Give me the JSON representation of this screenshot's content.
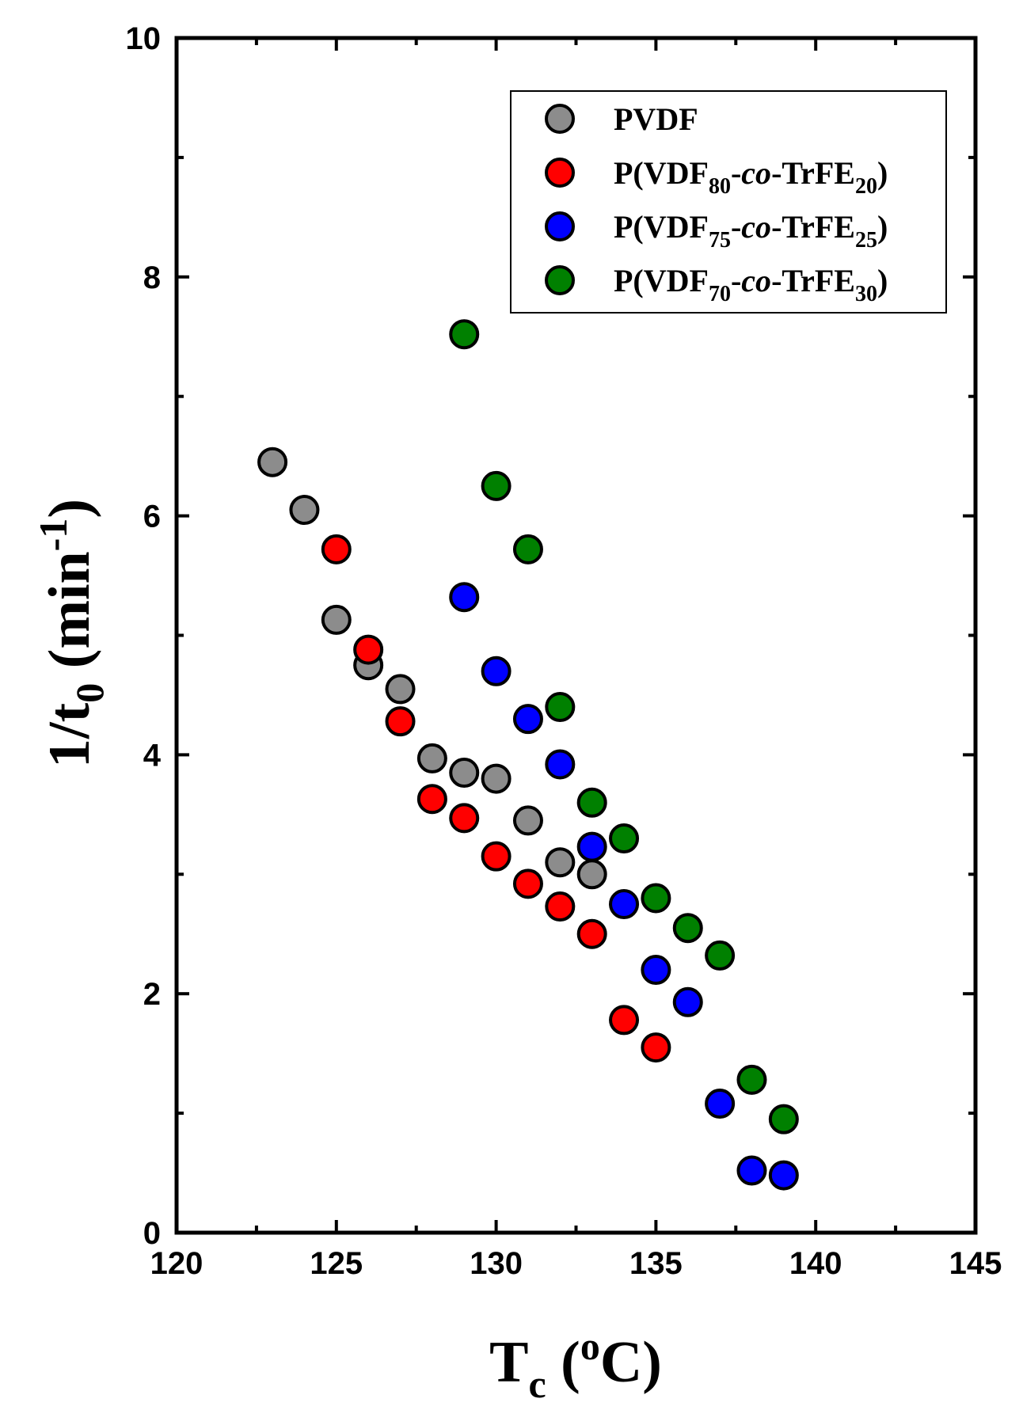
{
  "chart_data": {
    "type": "scatter",
    "xlabel": "Tc (oC)",
    "xlabel_parts": {
      "main": "T",
      "sub": "c",
      "open": " (",
      "sup": "o",
      "unit": "C)"
    },
    "ylabel": "1/t0 (min-1)",
    "ylabel_parts": {
      "main": "1/t",
      "sub": "0",
      "unit": " (min",
      "sup": "-1",
      "close": ")"
    },
    "xlim": [
      120,
      145
    ],
    "ylim": [
      0,
      10
    ],
    "xticks": [
      "120",
      "125",
      "130",
      "135",
      "140",
      "145"
    ],
    "yticks": [
      "0",
      "2",
      "4",
      "6",
      "8",
      "10"
    ],
    "legend_position": "top-right",
    "series": [
      {
        "name": "PVDF",
        "label_parts": [
          "PVDF"
        ],
        "color": "#8c8c8c",
        "x": [
          123,
          124,
          125,
          126,
          127,
          128,
          129,
          130,
          131,
          132,
          133
        ],
        "y": [
          6.45,
          6.05,
          5.13,
          4.75,
          4.55,
          3.97,
          3.85,
          3.8,
          3.45,
          3.1,
          3.0
        ]
      },
      {
        "name": "P(VDF80-co-TrFE20)",
        "label_parts": [
          "P(VDF",
          "80",
          "-",
          "co",
          "-TrFE",
          "20",
          ")"
        ],
        "color": "#ff0000",
        "x": [
          125,
          126,
          127,
          128,
          129,
          130,
          131,
          132,
          133,
          134,
          135
        ],
        "y": [
          5.72,
          4.88,
          4.28,
          3.63,
          3.47,
          3.15,
          2.92,
          2.73,
          2.5,
          1.78,
          1.55
        ]
      },
      {
        "name": "P(VDF75-co-TrFE25)",
        "label_parts": [
          "P(VDF",
          "75",
          "-",
          "co",
          "-TrFE",
          "25",
          ")"
        ],
        "color": "#0000ff",
        "x": [
          129,
          130,
          131,
          132,
          133,
          134,
          135,
          136,
          137,
          138,
          139
        ],
        "y": [
          5.32,
          4.7,
          4.3,
          3.92,
          3.23,
          2.75,
          2.2,
          1.93,
          1.08,
          0.52,
          0.48
        ]
      },
      {
        "name": "P(VDF70-co-TrFE30)",
        "label_parts": [
          "P(VDF",
          "70",
          "-",
          "co",
          "-TrFE",
          "30",
          ")"
        ],
        "color": "#008000",
        "x": [
          129,
          130,
          131,
          132,
          133,
          134,
          135,
          136,
          137,
          138,
          139
        ],
        "y": [
          7.52,
          6.25,
          5.72,
          4.4,
          3.6,
          3.3,
          2.8,
          2.55,
          2.32,
          1.28,
          0.95
        ]
      }
    ]
  }
}
